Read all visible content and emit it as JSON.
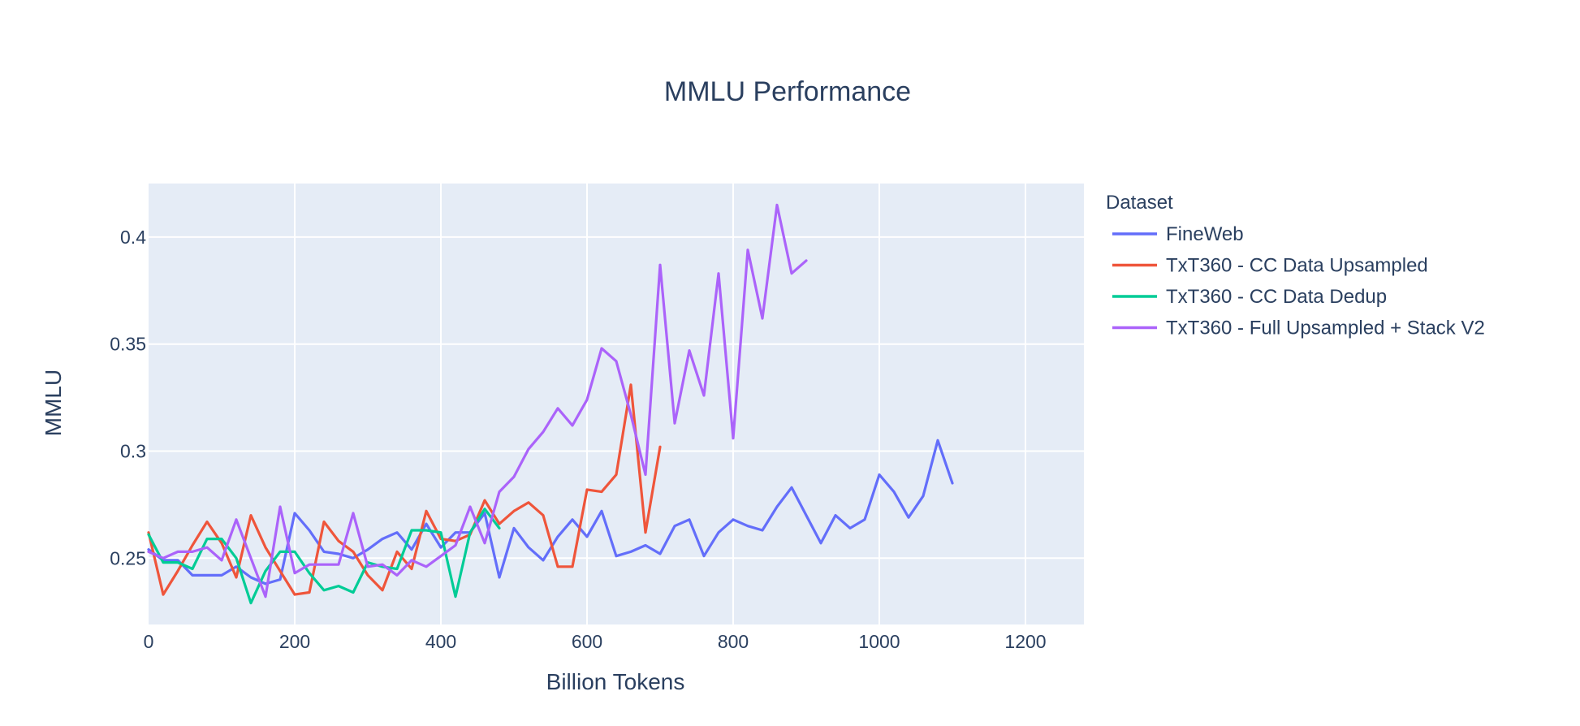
{
  "chart_data": {
    "type": "line",
    "title": "MMLU Performance",
    "xlabel": "Billion Tokens",
    "ylabel": "MMLU",
    "xlim": [
      0,
      1280
    ],
    "ylim": [
      0.219,
      0.425
    ],
    "x_ticks": [
      0,
      200,
      400,
      600,
      800,
      1000,
      1200
    ],
    "x_tick_labels": [
      "0",
      "200",
      "400",
      "600",
      "800",
      "1000",
      "1200"
    ],
    "y_ticks": [
      0.25,
      0.3,
      0.35,
      0.4
    ],
    "y_tick_labels": [
      "0.25",
      "0.3",
      "0.35",
      "0.4"
    ],
    "grid": true,
    "plot_background": "#e5ecf6",
    "legend": {
      "title": "Dataset",
      "position": "right"
    },
    "series": [
      {
        "name": "FineWeb",
        "color": "#636efa",
        "x": [
          0,
          20,
          40,
          60,
          80,
          100,
          120,
          140,
          160,
          180,
          200,
          220,
          240,
          260,
          280,
          300,
          320,
          340,
          360,
          380,
          400,
          420,
          440,
          460,
          480,
          500,
          520,
          540,
          560,
          580,
          600,
          620,
          640,
          660,
          680,
          700,
          720,
          740,
          760,
          780,
          800,
          820,
          840,
          860,
          880,
          900,
          920,
          940,
          960,
          980,
          1000,
          1020,
          1040,
          1060,
          1080,
          1100
        ],
        "y": [
          0.254,
          0.249,
          0.249,
          0.242,
          0.242,
          0.242,
          0.246,
          0.241,
          0.238,
          0.24,
          0.271,
          0.263,
          0.253,
          0.252,
          0.25,
          0.254,
          0.259,
          0.262,
          0.254,
          0.266,
          0.255,
          0.262,
          0.262,
          0.271,
          0.241,
          0.264,
          0.255,
          0.249,
          0.26,
          0.268,
          0.26,
          0.272,
          0.251,
          0.253,
          0.256,
          0.252,
          0.265,
          0.268,
          0.251,
          0.262,
          0.268,
          0.265,
          0.263,
          0.274,
          0.283,
          0.27,
          0.257,
          0.27,
          0.264,
          0.268,
          0.289,
          0.281,
          0.269,
          0.279,
          0.305,
          0.285
        ]
      },
      {
        "name": "TxT360 - CC Data Upsampled",
        "color": "#ef553b",
        "x": [
          0,
          20,
          40,
          60,
          80,
          100,
          120,
          140,
          160,
          180,
          200,
          220,
          240,
          260,
          280,
          300,
          320,
          340,
          360,
          380,
          400,
          420,
          440,
          460,
          480,
          500,
          520,
          540,
          560,
          580,
          600,
          620,
          640,
          660,
          680,
          700
        ],
        "y": [
          0.262,
          0.233,
          0.244,
          0.256,
          0.267,
          0.257,
          0.241,
          0.27,
          0.255,
          0.244,
          0.233,
          0.234,
          0.267,
          0.258,
          0.253,
          0.242,
          0.235,
          0.253,
          0.245,
          0.272,
          0.259,
          0.258,
          0.261,
          0.277,
          0.266,
          0.272,
          0.276,
          0.27,
          0.246,
          0.246,
          0.282,
          0.281,
          0.289,
          0.331,
          0.262,
          0.302
        ]
      },
      {
        "name": "TxT360 - CC Data Dedup",
        "color": "#00cc96",
        "x": [
          0,
          20,
          40,
          60,
          80,
          100,
          120,
          140,
          160,
          180,
          200,
          220,
          240,
          260,
          280,
          300,
          320,
          340,
          360,
          380,
          400,
          420,
          440,
          460,
          480
        ],
        "y": [
          0.261,
          0.248,
          0.248,
          0.245,
          0.259,
          0.259,
          0.25,
          0.229,
          0.244,
          0.253,
          0.253,
          0.243,
          0.235,
          0.237,
          0.234,
          0.248,
          0.246,
          0.245,
          0.263,
          0.263,
          0.262,
          0.232,
          0.262,
          0.273,
          0.264
        ]
      },
      {
        "name": "TxT360 - Full Upsampled + Stack V2",
        "color": "#ab63fa",
        "x": [
          0,
          20,
          40,
          60,
          80,
          100,
          120,
          140,
          160,
          180,
          200,
          220,
          240,
          260,
          280,
          300,
          320,
          340,
          360,
          380,
          400,
          420,
          440,
          460,
          480,
          500,
          520,
          540,
          560,
          580,
          600,
          620,
          640,
          660,
          680,
          700,
          720,
          740,
          760,
          780,
          800,
          820,
          840,
          860,
          880,
          900
        ],
        "y": [
          0.253,
          0.25,
          0.253,
          0.253,
          0.255,
          0.249,
          0.268,
          0.25,
          0.232,
          0.274,
          0.243,
          0.247,
          0.247,
          0.247,
          0.271,
          0.246,
          0.247,
          0.242,
          0.249,
          0.246,
          0.251,
          0.256,
          0.274,
          0.257,
          0.281,
          0.288,
          0.301,
          0.309,
          0.32,
          0.312,
          0.324,
          0.348,
          0.342,
          0.317,
          0.289,
          0.387,
          0.313,
          0.347,
          0.326,
          0.383,
          0.306,
          0.394,
          0.362,
          0.415,
          0.383,
          0.389
        ]
      }
    ]
  }
}
